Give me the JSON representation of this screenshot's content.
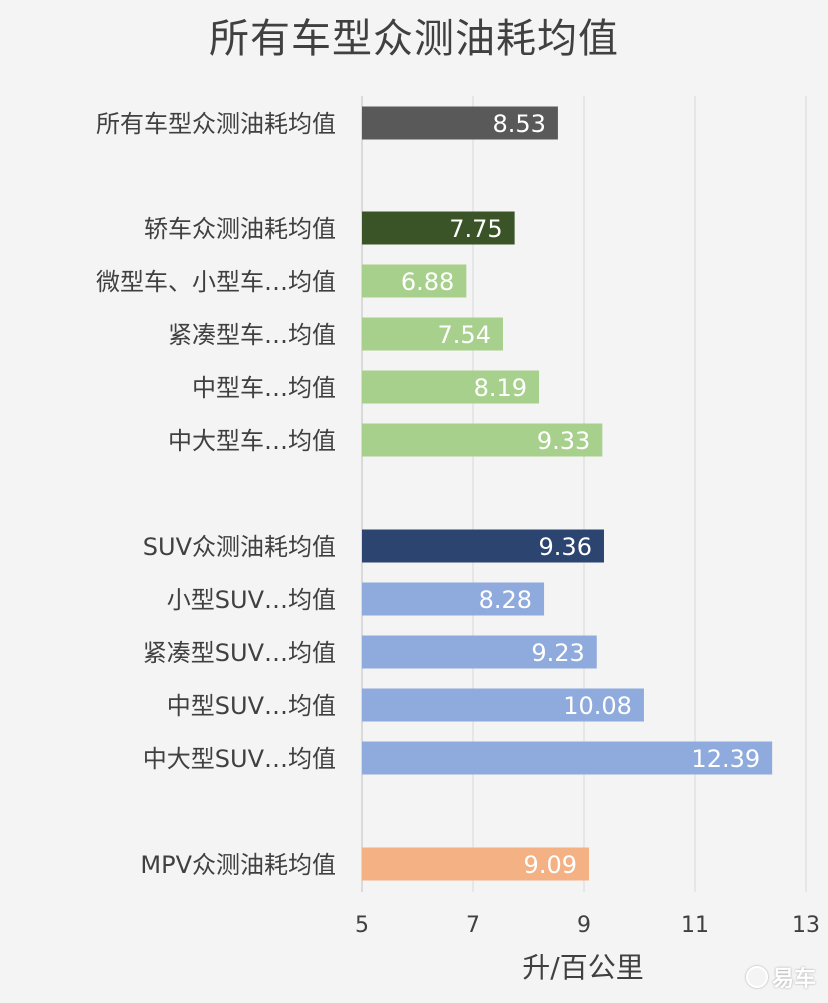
{
  "chart_data": {
    "type": "bar",
    "orientation": "horizontal",
    "title": "所有车型众测油耗均值",
    "xlabel": "升/百公里",
    "ylabel": "",
    "xlim": [
      5,
      13
    ],
    "xticks": [
      5,
      7,
      9,
      11,
      13
    ],
    "grid": true,
    "legend": "none",
    "categories": [
      "所有车型众测油耗均值",
      "轿车众测油耗均值",
      "微型车、小型车…均值",
      "紧凑型车…均值",
      "中型车…均值",
      "中大型车…均值",
      "SUV众测油耗均值",
      "小型SUV…均值",
      "紧凑型SUV…均值",
      "中型SUV…均值",
      "中大型SUV…均值",
      "MPV众测油耗均值"
    ],
    "values": [
      8.53,
      7.75,
      6.88,
      7.54,
      8.19,
      9.33,
      9.36,
      8.28,
      9.23,
      10.08,
      12.39,
      9.09
    ],
    "value_labels": [
      "8.53",
      "7.75",
      "6.88",
      "7.54",
      "8.19",
      "9.33",
      "9.36",
      "8.28",
      "9.23",
      "10.08",
      "12.39",
      "9.09"
    ],
    "colors": [
      "#595959",
      "#3a5428",
      "#a8d08d",
      "#a8d08d",
      "#a8d08d",
      "#a8d08d",
      "#2b4570",
      "#8faadc",
      "#8faadc",
      "#8faadc",
      "#8faadc",
      "#f4b183"
    ]
  },
  "watermark": {
    "text": "易车"
  }
}
